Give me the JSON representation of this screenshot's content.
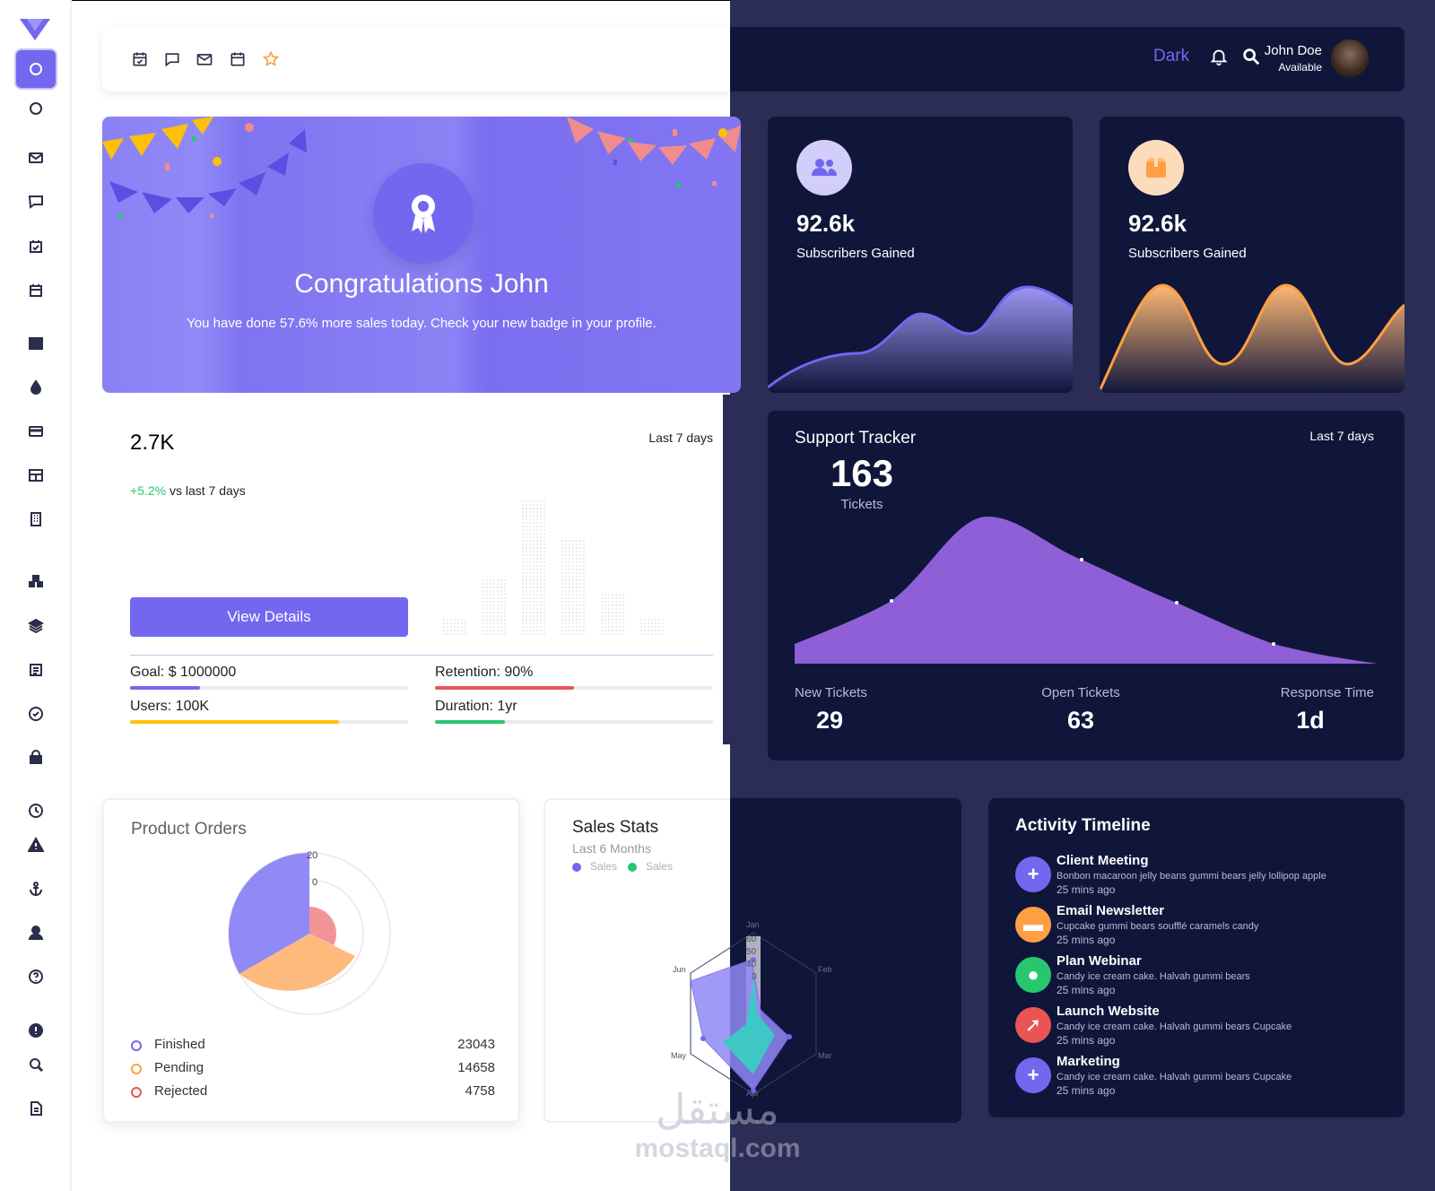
{
  "colors": {
    "primary": "#7367f0",
    "dark_card": "#10163a",
    "dark_bg": "#2b2d56",
    "success": "#28c76f",
    "danger": "#ea5455",
    "warning": "#ff9f43",
    "yellow": "#ffc107"
  },
  "sidebar": {
    "icons": [
      "home-icon",
      "circle-icon",
      "mail-icon",
      "chat-icon",
      "calendar-check-icon",
      "calendar-icon",
      "grid-icon",
      "droplet-icon",
      "credit-card-icon",
      "table-icon",
      "building-icon",
      "boxes-icon",
      "layers-icon",
      "list-icon",
      "check-circle-icon",
      "lock-icon",
      "clock-icon",
      "alert-triangle-icon",
      "anchor-icon",
      "user-icon",
      "help-icon",
      "info-icon",
      "search-icon",
      "file-icon"
    ]
  },
  "header": {
    "theme_label": "Dark",
    "user_name": "John Doe",
    "user_status": "Available",
    "shortcuts": [
      "calendar-check-icon",
      "chat-icon",
      "mail-icon",
      "calendar-icon",
      "star-icon"
    ]
  },
  "congrats": {
    "title": "Congratulations John",
    "message": "You have done 57.6% more sales today. Check your new badge in your profile."
  },
  "subscribers": [
    {
      "value": "92.6k",
      "label": "Subscribers Gained"
    },
    {
      "value": "92.6k",
      "label": "Subscribers Gained"
    }
  ],
  "sales_overview": {
    "value": "2.7K",
    "period": "Last 7 days",
    "change": "+5.2%",
    "change_suffix": "vs last 7 days",
    "button": "View Details",
    "goals": [
      {
        "label": "Goal: $ 1000000",
        "percent": 25,
        "color": "#7367f0"
      },
      {
        "label": "Retention: 90%",
        "percent": 50,
        "color": "#ea5455"
      },
      {
        "label": "Users: 100K",
        "percent": 75,
        "color": "#ffc107"
      },
      {
        "label": "Duration: 1yr",
        "percent": 25,
        "color": "#28c76f"
      }
    ]
  },
  "support": {
    "title": "Support Tracker",
    "period": "Last 7 days",
    "count": "163",
    "count_label": "Tickets",
    "stats": [
      {
        "label": "New Tickets",
        "value": "29"
      },
      {
        "label": "Open Tickets",
        "value": "63"
      },
      {
        "label": "Response Time",
        "value": "1d"
      }
    ]
  },
  "product_orders": {
    "title": "Product Orders",
    "scale_labels": [
      "20",
      "0"
    ],
    "items": [
      {
        "label": "Finished",
        "value": "23043",
        "color": "#7367f0"
      },
      {
        "label": "Pending",
        "value": "14658",
        "color": "#ff9f43"
      },
      {
        "label": "Rejected",
        "value": "4758",
        "color": "#ea5455"
      }
    ]
  },
  "sales_stats": {
    "title": "Sales Stats",
    "subtitle": "Last 6 Months",
    "legend": [
      "Sales",
      "Sales"
    ],
    "axes": [
      "Jan",
      "Feb",
      "Mar",
      "Apr",
      "May",
      "Jun"
    ],
    "ticks": [
      "60",
      "50",
      "40",
      "0"
    ]
  },
  "timeline": {
    "title": "Activity Timeline",
    "items": [
      {
        "title": "Client Meeting",
        "desc": "Bonbon macaroon jelly beans gummi bears jelly lollipop apple",
        "time": "25 mins ago",
        "color": "#7367f0",
        "glyph": "+"
      },
      {
        "title": "Email Newsletter",
        "desc": "Cupcake gummi bears soufflé caramels candy",
        "time": "25 mins ago",
        "color": "#ff9f43",
        "glyph": "▬"
      },
      {
        "title": "Plan Webinar",
        "desc": "Candy ice cream cake. Halvah gummi bears",
        "time": "25 mins ago",
        "color": "#28c76f",
        "glyph": "●"
      },
      {
        "title": "Launch Website",
        "desc": "Candy ice cream cake. Halvah gummi bears Cupcake",
        "time": "25 mins ago",
        "color": "#ea5455",
        "glyph": "➚"
      },
      {
        "title": "Marketing",
        "desc": "Candy ice cream cake. Halvah gummi bears Cupcake",
        "time": "25 mins ago",
        "color": "#7367f0",
        "glyph": "+"
      }
    ]
  },
  "watermark": {
    "arabic": "مستقل",
    "latin": "mostaql.com"
  }
}
